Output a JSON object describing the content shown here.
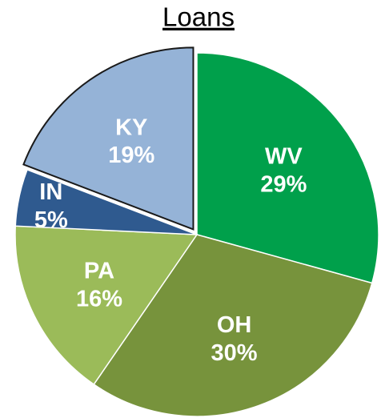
{
  "chart_data": {
    "type": "pie",
    "title": "Loans",
    "categories": [
      "WV",
      "OH",
      "PA",
      "IN",
      "KY"
    ],
    "values": [
      29,
      30,
      16,
      5,
      19
    ],
    "value_labels": [
      "29%",
      "30%",
      "16%",
      "5%",
      "19%"
    ],
    "colors": [
      "#00a04b",
      "#77933c",
      "#9bbb59",
      "#2f5a8f",
      "#95b3d7"
    ],
    "exploded": [
      false,
      false,
      false,
      false,
      true
    ]
  }
}
